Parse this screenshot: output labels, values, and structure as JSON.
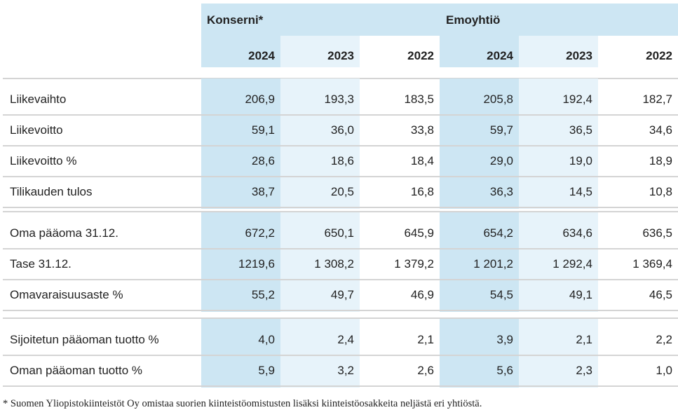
{
  "header": {
    "groups": [
      "Konserni*",
      "Emoyhtiö"
    ],
    "years": [
      "2024",
      "2023",
      "2022",
      "2024",
      "2023",
      "2022"
    ]
  },
  "sections": [
    {
      "rows": [
        {
          "label": "Liikevaihto",
          "values": [
            "206,9",
            "193,3",
            "183,5",
            "205,8",
            "192,4",
            "182,7"
          ]
        },
        {
          "label": "Liikevoitto",
          "values": [
            "59,1",
            "36,0",
            "33,8",
            "59,7",
            "36,5",
            "34,6"
          ]
        },
        {
          "label": "Liikevoitto %",
          "values": [
            "28,6",
            "18,6",
            "18,4",
            "29,0",
            "19,0",
            "18,9"
          ]
        },
        {
          "label": "Tilikauden tulos",
          "values": [
            "38,7",
            "20,5",
            "16,8",
            "36,3",
            "14,5",
            "10,8"
          ]
        }
      ]
    },
    {
      "rows": [
        {
          "label": "Oma pääoma 31.12.",
          "values": [
            "672,2",
            "650,1",
            "645,9",
            "654,2",
            "634,6",
            "636,5"
          ]
        },
        {
          "label": "Tase 31.12.",
          "values": [
            "1219,6",
            "1 308,2",
            "1 379,2",
            "1 201,2",
            "1 292,4",
            "1 369,4"
          ]
        },
        {
          "label": "Omavaraisuusaste %",
          "values": [
            "55,2",
            "49,7",
            "46,9",
            "54,5",
            "49,1",
            "46,5"
          ]
        }
      ]
    },
    {
      "rows": [
        {
          "label": "Sijoitetun pääoman tuotto %",
          "values": [
            "4,0",
            "2,4",
            "2,1",
            "3,9",
            "2,1",
            "2,2"
          ]
        },
        {
          "label": "Oman pääoman tuotto %",
          "values": [
            "5,9",
            "3,2",
            "2,6",
            "5,6",
            "2,3",
            "1,0"
          ]
        }
      ]
    }
  ],
  "footnote": "* Suomen Yliopistokiinteistöt Oy omistaa suorien kiinteistöomistusten lisäksi kiinteistöosakkeita neljästä eri yhtiöstä.",
  "colors": {
    "dark_column": "#cde6f3",
    "light_column": "#e7f3fa",
    "rule": "#d4d4d4"
  }
}
